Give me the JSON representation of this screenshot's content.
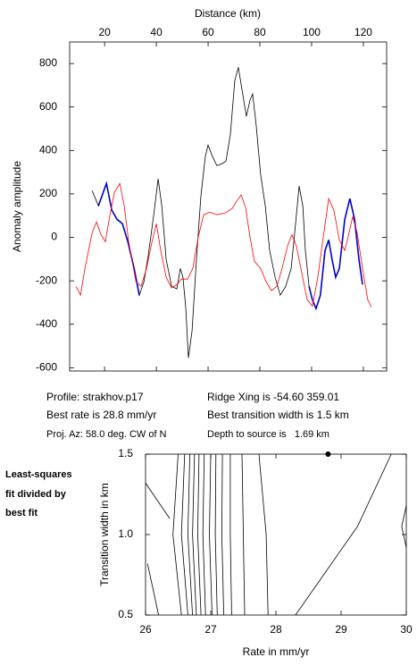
{
  "chart_data": [
    {
      "type": "line",
      "xlabel": "Distance (km)",
      "ylabel": "Anomaly amplitude",
      "xlim": [
        6.5,
        129
      ],
      "xticks": [
        20,
        40,
        60,
        80,
        100,
        120
      ],
      "ylim": [
        -615,
        899
      ],
      "yticks": [
        -600,
        -400,
        -200,
        0,
        200,
        400,
        600,
        800
      ],
      "series": [
        {
          "color": "#000000",
          "x": [
            15.2,
            17.6,
            20.7,
            22.8,
            24.8,
            26.9,
            29.0,
            31.4,
            33.4,
            35.2,
            36.9,
            39.0,
            40.7,
            42.1,
            43.8,
            45.9,
            47.9,
            49.3,
            50.3,
            51.4,
            52.4,
            53.8,
            55.5,
            57.2,
            58.9,
            60.0,
            61.7,
            63.4,
            65.2,
            66.9,
            68.6,
            70.3,
            71.7,
            73.1,
            74.8,
            76.2,
            77.2,
            78.6,
            80.3,
            82.1,
            83.8,
            85.9,
            87.9,
            90.0,
            92.1,
            93.8,
            95.2,
            96.6,
            97.6,
            99.0,
            100.3,
            101.7,
            103.4,
            105.2,
            106.6,
            107.9,
            109.3,
            110.7,
            112.8,
            114.8,
            116.6,
            118.3,
            119.7
          ],
          "values": [
            215,
            145,
            248,
            125,
            83,
            63,
            -20,
            -143,
            -266,
            -204,
            -81,
            104,
            269,
            145,
            -102,
            -225,
            -237,
            -143,
            -184,
            -328,
            -555,
            -430,
            -102,
            186,
            371,
            425,
            371,
            330,
            338,
            350,
            474,
            721,
            783,
            680,
            557,
            631,
            660,
            516,
            289,
            145,
            -61,
            -184,
            -266,
            -225,
            -143,
            63,
            236,
            145,
            -61,
            -225,
            -287,
            -328,
            -266,
            -61,
            -12,
            -102,
            -184,
            -143,
            83,
            178,
            83,
            -102,
            -217
          ]
        },
        {
          "color": "#0000cc",
          "x": [
            15.2,
            17.6,
            20.7,
            22.8,
            24.8,
            26.9,
            29.0,
            31.4,
            33.4,
            35.2,
            36.9,
            39.0,
            40.7,
            42.1,
            43.8,
            45.9,
            47.9,
            49.3,
            50.3,
            51.4,
            52.4,
            53.8,
            55.5,
            57.2,
            58.9,
            60.0,
            61.7,
            63.4,
            65.2,
            66.9,
            68.6,
            70.3,
            71.7,
            73.1,
            74.8,
            76.2,
            77.2,
            78.6,
            80.3,
            82.1,
            83.8,
            85.9,
            87.9,
            90.0,
            92.1,
            93.8,
            95.2,
            96.6,
            97.6,
            99.0,
            100.3,
            101.7,
            103.4,
            105.2,
            106.6,
            107.9,
            109.3,
            110.7,
            112.8,
            114.8,
            116.6,
            118.3,
            119.7
          ],
          "values": [
            null,
            145,
            248,
            125,
            83,
            63,
            -20,
            -143,
            -266,
            null,
            null,
            null,
            null,
            null,
            null,
            null,
            null,
            null,
            null,
            null,
            null,
            null,
            null,
            null,
            null,
            null,
            null,
            null,
            null,
            null,
            null,
            null,
            null,
            null,
            null,
            null,
            null,
            null,
            null,
            null,
            null,
            null,
            null,
            null,
            null,
            null,
            null,
            null,
            null,
            -225,
            -287,
            -328,
            -266,
            -61,
            -12,
            -102,
            -184,
            -143,
            83,
            178,
            83,
            -102,
            -217
          ]
        },
        {
          "color": "#ff0000",
          "x": [
            9.0,
            10.7,
            12.4,
            15.2,
            16.9,
            18.6,
            20.3,
            22.1,
            23.8,
            25.9,
            27.6,
            29.3,
            32.1,
            34.1,
            36.2,
            38.3,
            40.0,
            41.7,
            43.8,
            45.9,
            47.9,
            49.7,
            52.1,
            54.1,
            56.2,
            58.3,
            60.7,
            63.4,
            66.6,
            69.3,
            71.0,
            72.8,
            74.5,
            76.2,
            77.9,
            80.3,
            82.4,
            84.5,
            86.6,
            88.6,
            90.7,
            92.4,
            94.1,
            96.2,
            98.3,
            100.3,
            102.4,
            104.5,
            106.6,
            108.6,
            110.7,
            112.8,
            114.1,
            115.9,
            117.6,
            119.7,
            121.7,
            123.1
          ],
          "values": [
            -226,
            -266,
            -143,
            21,
            71,
            12,
            -20,
            104,
            207,
            248,
            145,
            -20,
            -204,
            -225,
            -143,
            -20,
            63,
            -61,
            -184,
            -233,
            -217,
            -192,
            -192,
            -143,
            1,
            104,
            116,
            104,
            112,
            133,
            166,
            195,
            137,
            1,
            -110,
            -143,
            -204,
            -245,
            -225,
            -143,
            -40,
            12,
            -40,
            -163,
            -287,
            -316,
            -184,
            1,
            178,
            125,
            -12,
            -61,
            1,
            95,
            21,
            -143,
            -287,
            -320
          ]
        }
      ]
    },
    {
      "type": "contour",
      "xlabel": "Rate in mm/yr",
      "ylabel": "Transition width in km",
      "xlim": [
        26,
        30
      ],
      "xticks": [
        26,
        27,
        28,
        29,
        30
      ],
      "ylim": [
        0.5,
        1.5
      ],
      "yticks": [
        0.5,
        {
          "value": 1,
          "label": "1.0"
        },
        1.5
      ],
      "marker": {
        "x": 28.8,
        "y": 1.5
      },
      "series": [
        {
          "color": "#000000",
          "x": [
            26,
            26.37
          ],
          "values": [
            1.32,
            1.1
          ]
        },
        {
          "color": "#000000",
          "x": [
            26.03,
            26.2
          ],
          "values": [
            0.82,
            0.5
          ]
        },
        {
          "color": "#000000",
          "x": [
            26.5,
            26.42,
            26.55
          ],
          "values": [
            1.5,
            1.0,
            0.5
          ]
        },
        {
          "color": "#000000",
          "x": [
            26.6,
            26.55,
            26.65
          ],
          "values": [
            1.5,
            1.0,
            0.5
          ]
        },
        {
          "color": "#000000",
          "x": [
            26.68,
            26.65,
            26.72
          ],
          "values": [
            1.5,
            1.0,
            0.5
          ]
        },
        {
          "color": "#000000",
          "x": [
            26.75,
            26.72,
            26.78
          ],
          "values": [
            1.5,
            1.0,
            0.5
          ]
        },
        {
          "color": "#000000",
          "x": [
            26.82,
            26.8,
            26.85
          ],
          "values": [
            1.5,
            1.0,
            0.5
          ]
        },
        {
          "color": "#000000",
          "x": [
            26.9,
            26.88,
            26.92
          ],
          "values": [
            1.5,
            1.0,
            0.5
          ]
        },
        {
          "color": "#000000",
          "x": [
            27.0,
            26.98,
            27.02
          ],
          "values": [
            1.5,
            1.0,
            0.5
          ]
        },
        {
          "color": "#000000",
          "x": [
            27.08,
            27.07,
            27.1
          ],
          "values": [
            1.5,
            1.0,
            0.5
          ]
        },
        {
          "color": "#000000",
          "x": [
            27.18,
            27.17,
            27.2
          ],
          "values": [
            1.5,
            1.0,
            0.5
          ]
        },
        {
          "color": "#000000",
          "x": [
            27.3,
            27.3,
            27.32
          ],
          "values": [
            1.5,
            1.0,
            0.5
          ]
        },
        {
          "color": "#000000",
          "x": [
            27.48,
            27.5,
            27.52
          ],
          "values": [
            1.5,
            1.0,
            0.5
          ]
        },
        {
          "color": "#000000",
          "x": [
            27.74,
            27.85,
            27.88
          ],
          "values": [
            1.5,
            1.0,
            0.5
          ]
        },
        {
          "color": "#000000",
          "x": [
            29.77,
            29.25,
            28.3
          ],
          "values": [
            1.5,
            1.05,
            0.5
          ]
        },
        {
          "color": "#000000",
          "x": [
            30,
            29.93,
            30
          ],
          "values": [
            1.18,
            1.05,
            0.92
          ]
        }
      ]
    }
  ],
  "annotations": {
    "profile": "Profile: strakhov.p17",
    "best_rate": "Best rate is 28.8 mm/yr",
    "proj_az": "Proj. Az: 58.0 deg. CW of N",
    "ridge_xing": "Ridge Xing is -54.60 359.01",
    "best_width": "Best transition width is 1.5 km",
    "depth": "Depth to source is   1.69 km",
    "note": [
      "Least-squares",
      "fit divided by",
      "best fit"
    ]
  }
}
